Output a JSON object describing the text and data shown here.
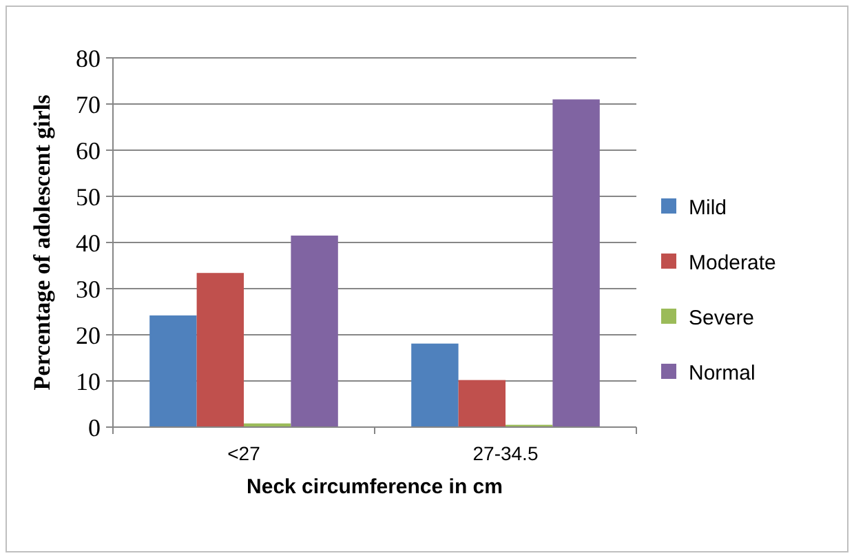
{
  "chart_data": {
    "type": "bar",
    "xlabel": "Neck circumference in cm",
    "ylabel": "Percentage of adolescent girls",
    "categories": [
      "<27",
      "27-34.5"
    ],
    "series": [
      {
        "name": "Mild",
        "color": "#4f81bd",
        "values": [
          24.2,
          18.1
        ]
      },
      {
        "name": "Moderate",
        "color": "#c0504d",
        "values": [
          33.4,
          10.2
        ]
      },
      {
        "name": "Severe",
        "color": "#9bbb59",
        "values": [
          0.8,
          0.5
        ]
      },
      {
        "name": "Normal",
        "color": "#8064a2",
        "values": [
          41.5,
          71
        ]
      }
    ],
    "ylim": [
      0,
      80
    ],
    "yticks": [
      0,
      10,
      20,
      30,
      40,
      50,
      60,
      70,
      80
    ],
    "grid": "y",
    "legend": "right"
  }
}
